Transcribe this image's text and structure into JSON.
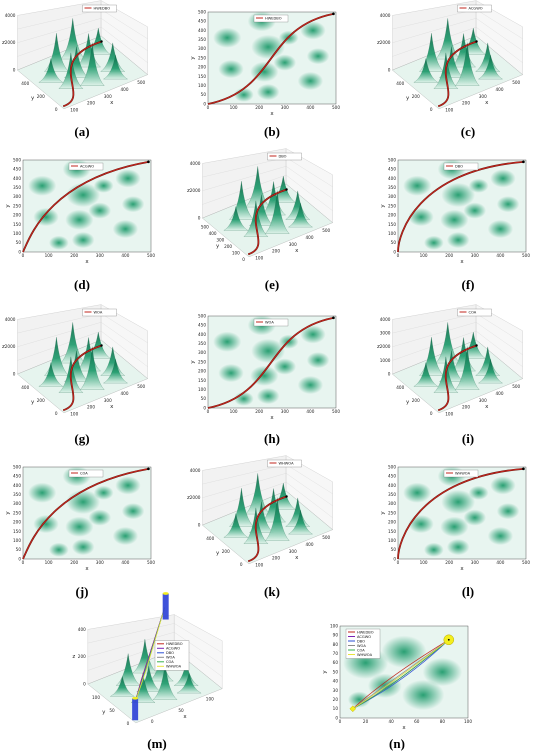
{
  "captions": {
    "a": "(a)",
    "b": "(b)",
    "c": "(c)",
    "d": "(d)",
    "e": "(e)",
    "f": "(f)",
    "g": "(g)",
    "h": "(h)",
    "i": "(i)",
    "j": "(j)",
    "k": "(k)",
    "l": "(l)",
    "m": "(m)",
    "n": "(n)"
  },
  "colors": {
    "terrain_dark": "#1f9b6c",
    "terrain_light": "#e8f5f0",
    "path": "#c2261d",
    "path_outline": "#5a0d08",
    "goal": "#f3ee1e"
  },
  "chart_data": [
    {
      "id": "a",
      "type": "surface-3d",
      "legend": [
        "HWEDBO"
      ],
      "xlabel": "x",
      "ylabel": "y",
      "zlabel": "z",
      "x_ticks": [
        "100",
        "200",
        "300",
        "400",
        "500"
      ],
      "y_ticks": [
        "0",
        "200",
        "400"
      ],
      "z_ticks": [
        "0",
        "2000",
        "4000"
      ]
    },
    {
      "id": "b",
      "type": "heatmap-path",
      "legend": [
        "HWEDBO"
      ],
      "xlabel": "x",
      "ylabel": "y",
      "x_ticks": [
        "0",
        "100",
        "200",
        "300",
        "400",
        "500"
      ],
      "y_ticks": [
        "0",
        "50",
        "100",
        "150",
        "200",
        "250",
        "300",
        "350",
        "400",
        "450",
        "500"
      ],
      "xlim": [
        0,
        500
      ],
      "ylim": [
        0,
        500
      ],
      "path": {
        "start": [
          0,
          0
        ],
        "end": [
          490,
          490
        ]
      }
    },
    {
      "id": "c",
      "type": "surface-3d",
      "legend": [
        "ACGWO"
      ],
      "xlabel": "x",
      "ylabel": "y",
      "zlabel": "z",
      "x_ticks": [
        "100",
        "200",
        "300",
        "400",
        "500"
      ],
      "y_ticks": [
        "0",
        "200",
        "400"
      ],
      "z_ticks": [
        "0",
        "2000",
        "4000"
      ]
    },
    {
      "id": "d",
      "type": "heatmap-path",
      "legend": [
        "ACGWO"
      ],
      "xlabel": "x",
      "ylabel": "y",
      "x_ticks": [
        "0",
        "100",
        "200",
        "300",
        "400",
        "500"
      ],
      "y_ticks": [
        "0",
        "50",
        "100",
        "150",
        "200",
        "250",
        "300",
        "350",
        "400",
        "450",
        "500"
      ],
      "xlim": [
        0,
        500
      ],
      "ylim": [
        0,
        500
      ],
      "path": {
        "start": [
          0,
          0
        ],
        "end": [
          490,
          490
        ]
      }
    },
    {
      "id": "e",
      "type": "surface-3d",
      "legend": [
        "DBO"
      ],
      "xlabel": "x",
      "ylabel": "y",
      "zlabel": "z",
      "x_ticks": [
        "100",
        "200",
        "300",
        "400",
        "500"
      ],
      "y_ticks": [
        "0",
        "100",
        "200",
        "300",
        "400",
        "500"
      ],
      "z_ticks": [
        "0",
        "2000",
        "4000"
      ]
    },
    {
      "id": "f",
      "type": "heatmap-path",
      "legend": [
        "DBO"
      ],
      "xlabel": "x",
      "ylabel": "y",
      "x_ticks": [
        "0",
        "100",
        "200",
        "300",
        "400",
        "500"
      ],
      "y_ticks": [
        "0",
        "50",
        "100",
        "150",
        "200",
        "250",
        "300",
        "350",
        "400",
        "450",
        "500"
      ],
      "xlim": [
        0,
        500
      ],
      "ylim": [
        0,
        500
      ],
      "path": {
        "start": [
          0,
          0
        ],
        "end": [
          490,
          490
        ]
      }
    },
    {
      "id": "g",
      "type": "surface-3d",
      "legend": [
        "WOA"
      ],
      "xlabel": "x",
      "ylabel": "y",
      "zlabel": "z",
      "x_ticks": [
        "100",
        "200",
        "300",
        "400",
        "500"
      ],
      "y_ticks": [
        "0",
        "200",
        "400"
      ],
      "z_ticks": [
        "0",
        "2000",
        "4000"
      ]
    },
    {
      "id": "h",
      "type": "heatmap-path",
      "legend": [
        "WOA"
      ],
      "xlabel": "x",
      "ylabel": "y",
      "x_ticks": [
        "0",
        "100",
        "200",
        "300",
        "400",
        "500"
      ],
      "y_ticks": [
        "0",
        "50",
        "100",
        "150",
        "200",
        "250",
        "300",
        "350",
        "400",
        "450",
        "500"
      ],
      "xlim": [
        0,
        500
      ],
      "ylim": [
        0,
        500
      ],
      "path": {
        "start": [
          0,
          0
        ],
        "end": [
          490,
          490
        ]
      }
    },
    {
      "id": "i",
      "type": "surface-3d",
      "legend": [
        "COA"
      ],
      "xlabel": "x",
      "ylabel": "y",
      "zlabel": "z",
      "x_ticks": [
        "100",
        "200",
        "300",
        "400",
        "500"
      ],
      "y_ticks": [
        "0",
        "200",
        "400"
      ],
      "z_ticks": [
        "0",
        "1000",
        "2000",
        "3000",
        "4000"
      ]
    },
    {
      "id": "j",
      "type": "heatmap-path",
      "legend": [
        "COA"
      ],
      "xlabel": "x",
      "ylabel": "y",
      "x_ticks": [
        "0",
        "100",
        "200",
        "300",
        "400",
        "500"
      ],
      "y_ticks": [
        "0",
        "50",
        "100",
        "150",
        "200",
        "250",
        "300",
        "350",
        "400",
        "450",
        "500"
      ],
      "xlim": [
        0,
        500
      ],
      "ylim": [
        0,
        500
      ],
      "path": {
        "start": [
          0,
          0
        ],
        "end": [
          490,
          490
        ]
      }
    },
    {
      "id": "k",
      "type": "surface-3d",
      "legend": [
        "WHWOA"
      ],
      "xlabel": "x",
      "ylabel": "y",
      "zlabel": "z",
      "x_ticks": [
        "100",
        "200",
        "300",
        "400",
        "500"
      ],
      "y_ticks": [
        "0",
        "200",
        "400"
      ],
      "z_ticks": [
        "0",
        "2000",
        "4000"
      ]
    },
    {
      "id": "l",
      "type": "heatmap-path",
      "legend": [
        "WHWOA"
      ],
      "xlabel": "x",
      "ylabel": "y",
      "x_ticks": [
        "0",
        "100",
        "200",
        "300",
        "400",
        "500"
      ],
      "y_ticks": [
        "0",
        "50",
        "100",
        "150",
        "200",
        "250",
        "300",
        "350",
        "400",
        "450",
        "500"
      ],
      "xlim": [
        0,
        500
      ],
      "ylim": [
        0,
        500
      ],
      "path": {
        "start": [
          0,
          0
        ],
        "end": [
          490,
          490
        ]
      }
    },
    {
      "id": "m",
      "type": "surface-3d",
      "legend": [
        "HWEDBO",
        "ACGWO",
        "DBO",
        "WOA",
        "COA",
        "WHWOA"
      ],
      "xlabel": "x",
      "ylabel": "y",
      "zlabel": "z",
      "x_ticks": [
        "0",
        "50",
        "100"
      ],
      "y_ticks": [
        "0",
        "50",
        "100"
      ],
      "z_ticks": [
        "0",
        "200",
        "400"
      ]
    },
    {
      "id": "n",
      "type": "heatmap-path",
      "legend": [
        "HWEDBO",
        "ACGWO",
        "DBO",
        "WOA",
        "COA",
        "WHWOA"
      ],
      "xlabel": "x",
      "ylabel": "y",
      "x_ticks": [
        "0",
        "20",
        "40",
        "60",
        "80",
        "100"
      ],
      "y_ticks": [
        "0",
        "10",
        "20",
        "30",
        "40",
        "50",
        "60",
        "70",
        "80",
        "90",
        "100"
      ],
      "xlim": [
        0,
        100
      ],
      "ylim": [
        0,
        100
      ],
      "path": {
        "start": [
          10,
          10
        ],
        "end": [
          85,
          85
        ]
      }
    }
  ]
}
